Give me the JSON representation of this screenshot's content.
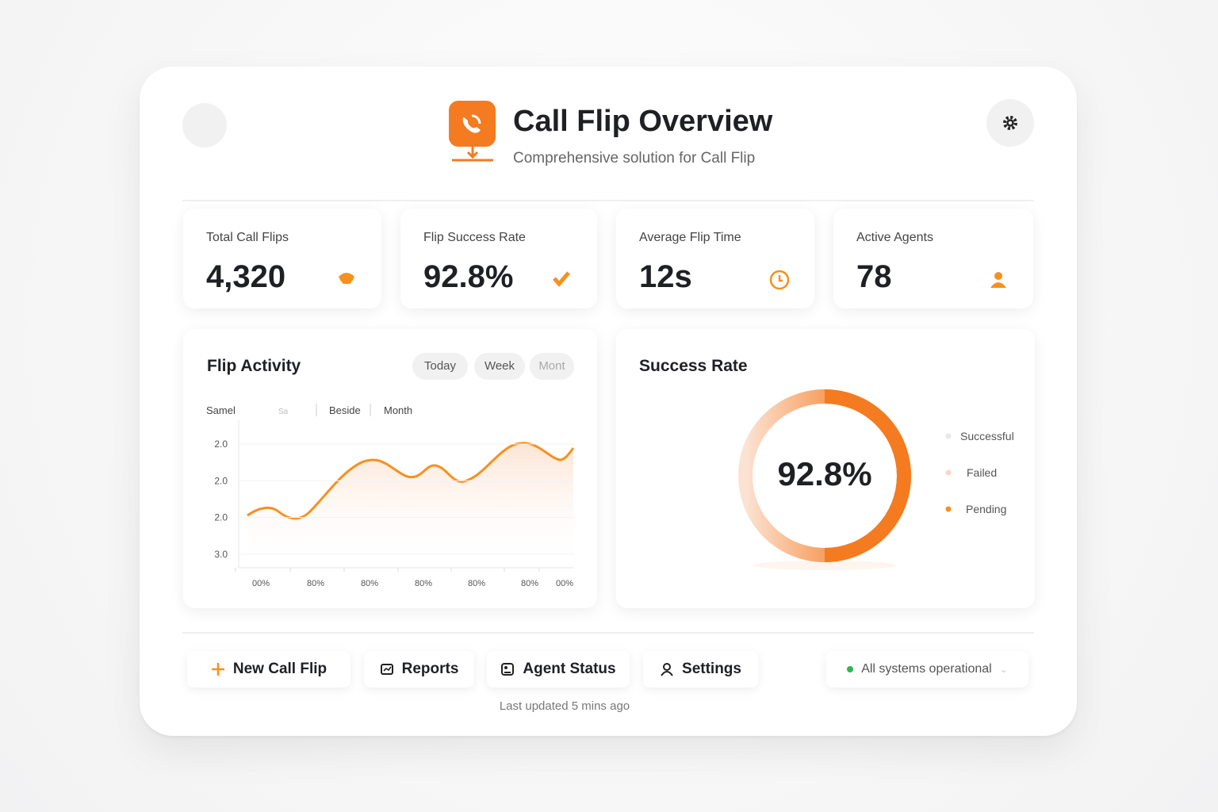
{
  "header": {
    "title": "Call Flip Overview",
    "subtitle": "Comprehensive solution for Call Flip"
  },
  "kpis": [
    {
      "label": "Total Call Flips",
      "value": "4,320"
    },
    {
      "label": "Flip Success Rate",
      "value": "92.8%"
    },
    {
      "label": "Average Flip Time",
      "value": "12s"
    },
    {
      "label": "Active Agents",
      "value": "78"
    }
  ],
  "activity": {
    "title": "Flip Activity",
    "tabs": [
      "Today",
      "Week",
      "Mont"
    ],
    "filters": [
      "Samel",
      "Sa",
      "Beside",
      "Month"
    ],
    "y_labels": [
      "2.0",
      "2.0",
      "2.0",
      "3.0"
    ],
    "x_labels": [
      "00%",
      "80%",
      "80%",
      "80%",
      "80%",
      "80%",
      "00%"
    ]
  },
  "success": {
    "title": "Success Rate",
    "center": "92.8%",
    "legend": [
      "Successful",
      "Failed",
      "Pending"
    ]
  },
  "actions": [
    "New Call Flip",
    "Reports",
    "Agent Status",
    "Settings"
  ],
  "status": "All systems operational",
  "footer": "Last updated 5 mins ago"
}
